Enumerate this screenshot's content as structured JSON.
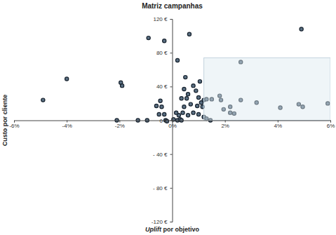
{
  "chart_data": {
    "type": "scatter",
    "title": "Matriz campanhas",
    "x_label": "Uplift por objetivo",
    "y_label": "Custo por cliente",
    "x": [
      -4.9,
      -4.0,
      -1.95,
      -1.9,
      -0.9,
      -0.3,
      0.65,
      0.2,
      0.5,
      4.9,
      2.6,
      -2.1,
      -1.3,
      -0.95,
      -0.25,
      -0.2,
      -0.6,
      -0.45,
      -0.4,
      -0.3,
      -0.5,
      0.05,
      0.2,
      0.3,
      0.35,
      0.4,
      0.45,
      0.35,
      0.6,
      0.45,
      0.8,
      0.9,
      1.0,
      0.7,
      0.95,
      0.8,
      0.6,
      1.0,
      1.2,
      1.3,
      1.45,
      1.15,
      1.2,
      1.3,
      1.5,
      1.8,
      1.85,
      1.95,
      2.2,
      2.2,
      2.35,
      2.6,
      3.2,
      4.1,
      1.05,
      1.1,
      0.55,
      0.25,
      0.15,
      4.8,
      4.95,
      5.9
    ],
    "values": [
      24,
      49,
      44.6,
      41,
      97.5,
      94,
      102,
      71,
      51,
      108,
      69,
      0,
      0,
      0,
      0,
      -1,
      17,
      23,
      16,
      7,
      7,
      1,
      0,
      1,
      0,
      9,
      16,
      26,
      31,
      37,
      41,
      35,
      27,
      19,
      17,
      9,
      6,
      7,
      4,
      2,
      0,
      16,
      24,
      25,
      25,
      29,
      24,
      13,
      9,
      16,
      8,
      24,
      21,
      15,
      46,
      21,
      26,
      6,
      9,
      19,
      16,
      20
    ],
    "color": "#5b7083",
    "marker": "circle",
    "highlight": {
      "x": [
        1.2,
        6
      ],
      "y": [
        0,
        74
      ]
    },
    "xlim": [
      -6,
      6
    ],
    "xticks": [
      {
        "value": -6,
        "label": "-6%"
      },
      {
        "value": -4,
        "label": "-4%"
      },
      {
        "value": -2,
        "label": "-2%"
      },
      {
        "value": 0,
        "label": "0%"
      },
      {
        "value": 2,
        "label": "2%"
      },
      {
        "value": 4,
        "label": "4%"
      },
      {
        "value": 6,
        "label": "6%"
      }
    ],
    "ylim": [
      -120,
      120
    ],
    "yticks": [
      {
        "value": -120,
        "label": "-120 €"
      },
      {
        "value": -80,
        "label": "- 80 €"
      },
      {
        "value": -40,
        "label": "- 40 €"
      },
      {
        "value": 0,
        "label": "0 €"
      },
      {
        "value": 40,
        "label": "40 €"
      },
      {
        "value": 80,
        "label": "80 €"
      },
      {
        "value": 120,
        "label": "120 €"
      }
    ],
    "grid": false
  }
}
